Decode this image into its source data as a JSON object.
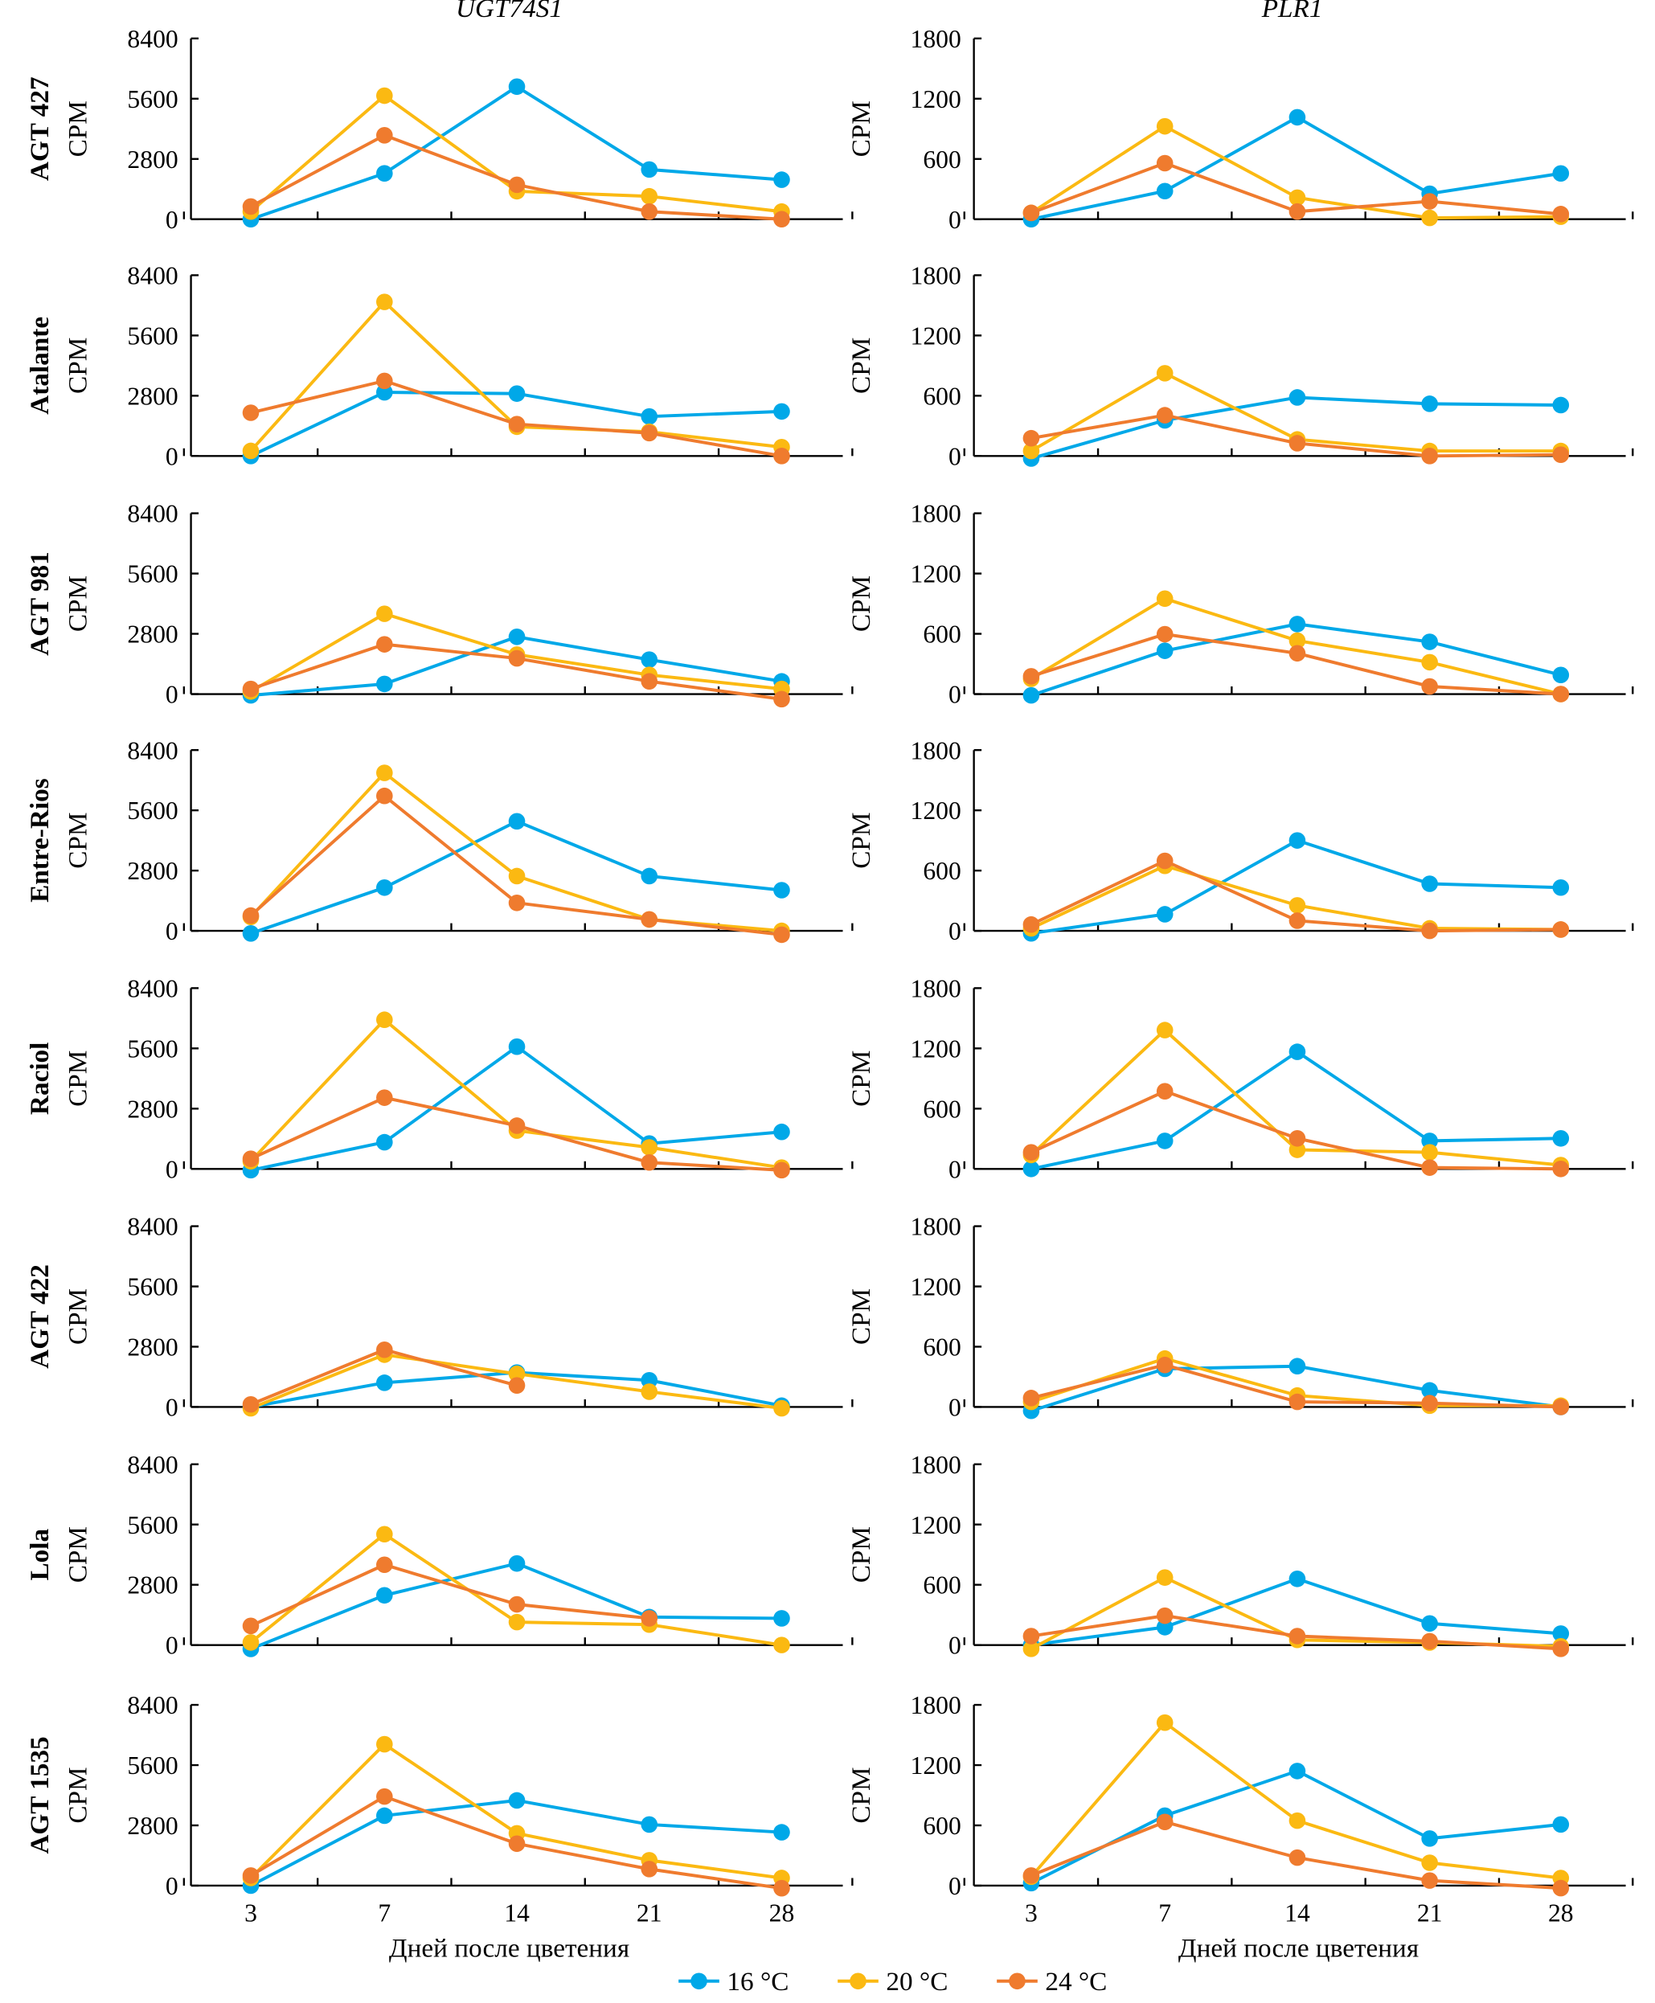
{
  "chart_data": {
    "type": "line",
    "layout": "grid of 8 rows x 2 columns",
    "columns": [
      "UGT74S1",
      "PLR1"
    ],
    "rows": [
      "AGT 427",
      "Atalante",
      "AGT 981",
      "Entre-Rios",
      "Raciol",
      "AGT 422",
      "Lola",
      "AGT 1535"
    ],
    "x": [
      3,
      7,
      14,
      21,
      28
    ],
    "x_tick_labels": [
      "3",
      "7",
      "14",
      "21",
      "28"
    ],
    "xlabel": "Дней после цветения",
    "ylabel": "CPM",
    "ylim": {
      "UGT74S1": [
        0,
        8400
      ],
      "PLR1": [
        0,
        1800
      ]
    },
    "yticks": {
      "UGT74S1": [
        "0",
        "2800",
        "5600",
        "8400"
      ],
      "PLR1": [
        "0",
        "600",
        "1200",
        "1800"
      ]
    },
    "grid": false,
    "legend": {
      "placement": "bottom-center",
      "entries": [
        "16 °C",
        "20 °C",
        "24 °C"
      ]
    },
    "series_colors": {
      "16 °C": "#00a8e8",
      "20 °C": "#fbb912",
      "24 °C": "#ef7b2e"
    },
    "panels": [
      {
        "row": "AGT 427",
        "col": "UGT74S1",
        "series": [
          {
            "name": "16 °C",
            "values": [
              0,
              2130,
              6160,
              2310,
              1835
            ]
          },
          {
            "name": "20 °C",
            "values": [
              355,
              5740,
              1300,
              1065,
              355
            ]
          },
          {
            "name": "24 °C",
            "values": [
              590,
              3900,
              1600,
              355,
              0
            ]
          }
        ]
      },
      {
        "row": "AGT 427",
        "col": "PLR1",
        "series": [
          {
            "name": "16 °C",
            "values": [
              0,
              280,
              1015,
              254,
              456
            ]
          },
          {
            "name": "20 °C",
            "values": [
              63,
              925,
              215,
              13,
              25
            ]
          },
          {
            "name": "24 °C",
            "values": [
              63,
              558,
              76,
              178,
              51
            ]
          }
        ]
      },
      {
        "row": "Atalante",
        "col": "UGT74S1",
        "series": [
          {
            "name": "16 °C",
            "values": [
              0,
              2960,
              2900,
              1835,
              2070
            ]
          },
          {
            "name": "20 °C",
            "values": [
              237,
              7160,
              1360,
              1125,
              414
            ]
          },
          {
            "name": "24 °C",
            "values": [
              2010,
              3490,
              1480,
              1065,
              0
            ]
          }
        ]
      },
      {
        "row": "Atalante",
        "col": "PLR1",
        "series": [
          {
            "name": "16 °C",
            "values": [
              -25,
              355,
              583,
              520,
              507
            ]
          },
          {
            "name": "20 °C",
            "values": [
              50,
              824,
              165,
              50,
              50
            ]
          },
          {
            "name": "24 °C",
            "values": [
              177,
              406,
              127,
              0,
              13
            ]
          }
        ]
      },
      {
        "row": "AGT 981",
        "col": "UGT74S1",
        "series": [
          {
            "name": "16 °C",
            "values": [
              -60,
              470,
              2660,
              1600,
              590
            ]
          },
          {
            "name": "20 °C",
            "values": [
              120,
              3730,
              1835,
              890,
              237
            ]
          },
          {
            "name": "24 °C",
            "values": [
              237,
              2310,
              1660,
              590,
              -237
            ]
          }
        ]
      },
      {
        "row": "AGT 981",
        "col": "PLR1",
        "series": [
          {
            "name": "16 °C",
            "values": [
              -13,
              431,
              697,
              520,
              190
            ]
          },
          {
            "name": "20 °C",
            "values": [
              152,
              950,
              532,
              317,
              0
            ]
          },
          {
            "name": "24 °C",
            "values": [
              177,
              596,
              406,
              76,
              0
            ]
          }
        ]
      },
      {
        "row": "Entre-Rios",
        "col": "UGT74S1",
        "series": [
          {
            "name": "16 °C",
            "values": [
              -120,
              2010,
              5090,
              2545,
              1890
            ]
          },
          {
            "name": "20 °C",
            "values": [
              650,
              7340,
              2545,
              530,
              0
            ]
          },
          {
            "name": "24 °C",
            "values": [
              710,
              6270,
              1300,
              530,
              -180
            ]
          }
        ]
      },
      {
        "row": "Entre-Rios",
        "col": "PLR1",
        "series": [
          {
            "name": "16 °C",
            "values": [
              -25,
              165,
              900,
              469,
              431
            ]
          },
          {
            "name": "20 °C",
            "values": [
              25,
              647,
              254,
              25,
              13
            ]
          },
          {
            "name": "24 °C",
            "values": [
              63,
              697,
              101,
              0,
              13
            ]
          }
        ]
      },
      {
        "row": "Raciol",
        "col": "UGT74S1",
        "series": [
          {
            "name": "16 °C",
            "values": [
              -60,
              1240,
              5680,
              1180,
              1720
            ]
          },
          {
            "name": "20 °C",
            "values": [
              355,
              6930,
              1780,
              1000,
              60
            ]
          },
          {
            "name": "24 °C",
            "values": [
              470,
              3310,
              2010,
              300,
              -60
            ]
          }
        ]
      },
      {
        "row": "Raciol",
        "col": "PLR1",
        "series": [
          {
            "name": "16 °C",
            "values": [
              0,
              279,
              1166,
              279,
              304
            ]
          },
          {
            "name": "20 °C",
            "values": [
              139,
              1382,
              190,
              165,
              38
            ]
          },
          {
            "name": "24 °C",
            "values": [
              165,
              773,
              304,
              13,
              0
            ]
          }
        ]
      },
      {
        "row": "AGT 422",
        "col": "UGT74S1",
        "series": [
          {
            "name": "16 °C",
            "values": [
              0,
              1125,
              1600,
              1240,
              60
            ]
          },
          {
            "name": "20 °C",
            "values": [
              -60,
              2430,
              1540,
              710,
              -60
            ]
          },
          {
            "name": "24 °C",
            "values": [
              120,
              2660,
              1000,
              null,
              null
            ]
          }
        ]
      },
      {
        "row": "AGT 422",
        "col": "PLR1",
        "series": [
          {
            "name": "16 °C",
            "values": [
              -38,
              380,
              406,
              165,
              0
            ]
          },
          {
            "name": "20 °C",
            "values": [
              51,
              482,
              114,
              13,
              13
            ]
          },
          {
            "name": "24 °C",
            "values": [
              89,
              418,
              51,
              38,
              0
            ]
          }
        ]
      },
      {
        "row": "Lola",
        "col": "UGT74S1",
        "series": [
          {
            "name": "16 °C",
            "values": [
              -180,
              2310,
              3790,
              1300,
              1240
            ]
          },
          {
            "name": "20 °C",
            "values": [
              120,
              5150,
              1065,
              950,
              0
            ]
          },
          {
            "name": "24 °C",
            "values": [
              890,
              3730,
              1890,
              1240,
              null
            ]
          }
        ]
      },
      {
        "row": "Lola",
        "col": "PLR1",
        "series": [
          {
            "name": "16 °C",
            "values": [
              0,
              178,
              659,
              215,
              114
            ]
          },
          {
            "name": "20 °C",
            "values": [
              -38,
              672,
              51,
              25,
              -13
            ]
          },
          {
            "name": "24 °C",
            "values": [
              89,
              292,
              89,
              38,
              -38
            ]
          }
        ]
      },
      {
        "row": "AGT 1535",
        "col": "UGT74S1",
        "series": [
          {
            "name": "16 °C",
            "values": [
              0,
              3250,
              3960,
              2840,
              2480
            ]
          },
          {
            "name": "20 °C",
            "values": [
              355,
              6570,
              2430,
              1180,
              355
            ]
          },
          {
            "name": "24 °C",
            "values": [
              470,
              4140,
              1950,
              770,
              -120
            ]
          }
        ]
      },
      {
        "row": "AGT 1535",
        "col": "PLR1",
        "series": [
          {
            "name": "16 °C",
            "values": [
              25,
              697,
              1141,
              469,
              609
            ]
          },
          {
            "name": "20 °C",
            "values": [
              89,
              1623,
              647,
              228,
              76
            ]
          },
          {
            "name": "24 °C",
            "values": [
              101,
              634,
              279,
              51,
              -25
            ]
          }
        ]
      }
    ]
  }
}
